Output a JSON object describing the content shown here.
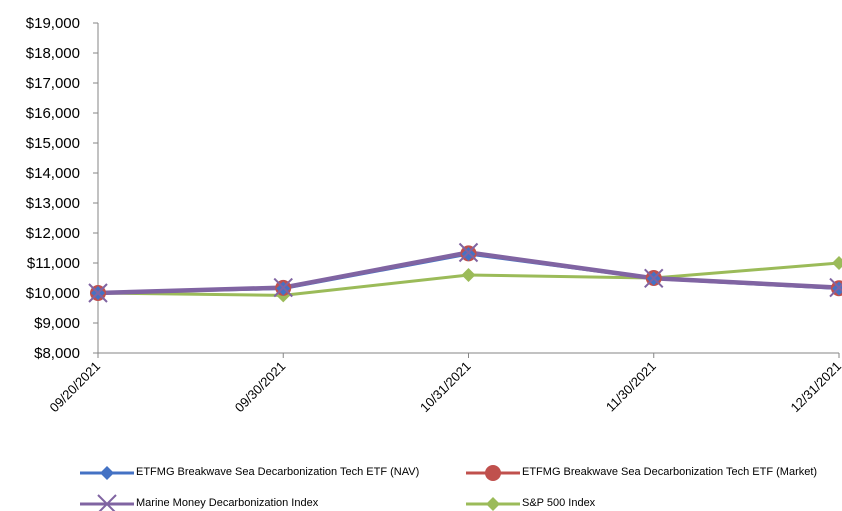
{
  "chart_data": {
    "type": "line",
    "title": "",
    "xlabel": "",
    "ylabel": "",
    "categories": [
      "09/20/2021",
      "09/30/2021",
      "10/31/2021",
      "11/30/2021",
      "12/31/2021"
    ],
    "ylim": [
      8000,
      19000
    ],
    "y_ticks": [
      "$8,000",
      "$9,000",
      "$10,000",
      "$11,000",
      "$12,000",
      "$13,000",
      "$14,000",
      "$15,000",
      "$16,000",
      "$17,000",
      "$18,000",
      "$19,000"
    ],
    "grid": false,
    "legend_position": "bottom",
    "series": [
      {
        "name": "ETFMG Breakwave Sea Decarbonization Tech ETF (NAV)",
        "values": [
          10000,
          10150,
          11300,
          10480,
          10150
        ],
        "color": "#4472c4",
        "marker": "diamond"
      },
      {
        "name": "ETFMG Breakwave Sea Decarbonization Tech ETF (Market)",
        "values": [
          10000,
          10170,
          11320,
          10500,
          10160
        ],
        "color": "#c0504d",
        "marker": "circle"
      },
      {
        "name": "Marine Money Decarbonization Index",
        "values": [
          10000,
          10180,
          11350,
          10490,
          10180
        ],
        "color": "#8064a2",
        "marker": "x"
      },
      {
        "name": "S&P 500 Index",
        "values": [
          10000,
          9920,
          10600,
          10500,
          11000
        ],
        "color": "#9bbb59",
        "marker": "diamond"
      }
    ]
  }
}
